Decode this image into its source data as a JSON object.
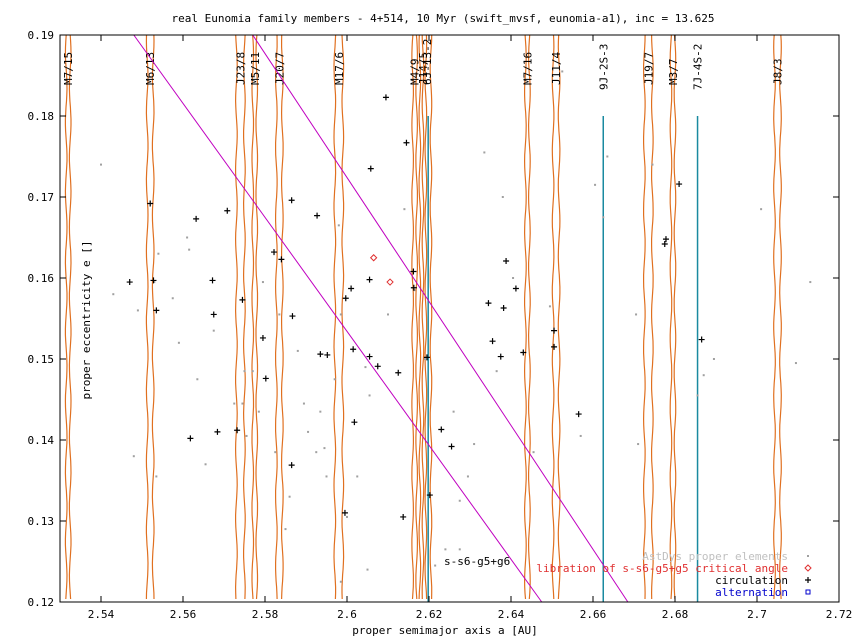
{
  "chart_data": {
    "type": "scatter",
    "title": "real Eunomia family members - 4+514, 10 Myr (swift_mvsf, eunomia-a1), inc = 13.625",
    "xlabel": "proper semimajor axis a [AU]",
    "ylabel": "proper eccentricity e []",
    "xlim": [
      2.53,
      2.72
    ],
    "ylim": [
      0.12,
      0.19
    ],
    "x_ticks": [
      "2.54",
      "2.56",
      "2.58",
      "2.6",
      "2.62",
      "2.64",
      "2.66",
      "2.68",
      "2.7",
      "2.72"
    ],
    "y_ticks": [
      "0.12",
      "0.13",
      "0.14",
      "0.15",
      "0.16",
      "0.17",
      "0.18",
      "0.19"
    ],
    "grid": false,
    "legend_position": "bottom-right",
    "colors": {
      "resonance_lines": "#e07020",
      "three_body_lines": "#1a8aa0",
      "secular_line": "#c000c0",
      "astdys": "#a0a0a0",
      "libration": "#e03030",
      "circulation": "#000000",
      "alternation": "#0000cc"
    },
    "legend": [
      {
        "label": "AstDys proper elements",
        "marker": "dot",
        "color": "#a0a0a0"
      },
      {
        "label": "libration of s-s6-g5+g5 critical angle",
        "marker": "diamond",
        "color": "#e03030"
      },
      {
        "label": "circulation",
        "marker": "plus",
        "color": "#000000"
      },
      {
        "label": "alternation",
        "marker": "square",
        "color": "#0000cc"
      }
    ],
    "annotation": "s-s6-g5+g6",
    "resonances": [
      {
        "label": "M7/15",
        "a": 2.532
      },
      {
        "label": "M6/13",
        "a": 2.552
      },
      {
        "label": "J23/8",
        "a": 2.574
      },
      {
        "label": "M5/11",
        "a": 2.5775
      },
      {
        "label": "J20/7",
        "a": 2.5835
      },
      {
        "label": "M17/6",
        "a": 2.598
      },
      {
        "label": "M4/9",
        "a": 2.6165
      },
      {
        "label": "J14/5",
        "a": 2.6185
      },
      {
        "label": "6J-13-2",
        "a": 2.6195
      },
      {
        "label": "M7/16",
        "a": 2.644
      },
      {
        "label": "J11/4",
        "a": 2.651
      },
      {
        "label": "J19/7",
        "a": 2.6735
      },
      {
        "label": "M3/7",
        "a": 2.6795
      },
      {
        "label": "J8/3",
        "a": 2.705
      }
    ],
    "three_body": [
      {
        "label": "9J-2S-3",
        "a": 2.6625
      },
      {
        "label": "7J-4S-2",
        "a": 2.6855
      }
    ],
    "secular_lines": [
      {
        "points": [
          [
            2.548,
            0.19
          ],
          [
            2.6475,
            0.12
          ]
        ]
      },
      {
        "points": [
          [
            2.577,
            0.19
          ],
          [
            2.6685,
            0.12
          ]
        ]
      }
    ],
    "series": [
      {
        "name": "AstDys proper elements",
        "points": [
          [
            2.54,
            0.174
          ],
          [
            2.543,
            0.158
          ],
          [
            2.548,
            0.138
          ],
          [
            2.549,
            0.156
          ],
          [
            2.553,
            0.1595
          ],
          [
            2.554,
            0.163
          ],
          [
            2.5535,
            0.1355
          ],
          [
            2.5575,
            0.1575
          ],
          [
            2.559,
            0.152
          ],
          [
            2.561,
            0.165
          ],
          [
            2.5615,
            0.1635
          ],
          [
            2.5635,
            0.1475
          ],
          [
            2.5655,
            0.137
          ],
          [
            2.5675,
            0.1535
          ],
          [
            2.5725,
            0.1445
          ],
          [
            2.5745,
            0.1445
          ],
          [
            2.575,
            0.1485
          ],
          [
            2.5755,
            0.1405
          ],
          [
            2.577,
            0.1485
          ],
          [
            2.5785,
            0.1435
          ],
          [
            2.5795,
            0.1595
          ],
          [
            2.5825,
            0.1385
          ],
          [
            2.5835,
            0.1555
          ],
          [
            2.586,
            0.133
          ],
          [
            2.588,
            0.151
          ],
          [
            2.5895,
            0.1445
          ],
          [
            2.5905,
            0.141
          ],
          [
            2.5925,
            0.1385
          ],
          [
            2.5935,
            0.1435
          ],
          [
            2.5945,
            0.139
          ],
          [
            2.595,
            0.1355
          ],
          [
            2.597,
            0.1475
          ],
          [
            2.598,
            0.1665
          ],
          [
            2.5985,
            0.1555
          ],
          [
            2.6,
            0.1305
          ],
          [
            2.6025,
            0.1355
          ],
          [
            2.6045,
            0.149
          ],
          [
            2.6055,
            0.1455
          ],
          [
            2.61,
            0.1555
          ],
          [
            2.614,
            0.1685
          ],
          [
            2.6165,
            0.1585
          ],
          [
            2.619,
            0.15
          ],
          [
            2.624,
            0.1265
          ],
          [
            2.626,
            0.1435
          ],
          [
            2.6275,
            0.1325
          ],
          [
            2.6295,
            0.1355
          ],
          [
            2.631,
            0.1395
          ],
          [
            2.6335,
            0.1755
          ],
          [
            2.6365,
            0.1485
          ],
          [
            2.638,
            0.17
          ],
          [
            2.6405,
            0.16
          ],
          [
            2.6455,
            0.1385
          ],
          [
            2.6495,
            0.1565
          ],
          [
            2.6525,
            0.1855
          ],
          [
            2.657,
            0.1405
          ],
          [
            2.6605,
            0.1715
          ],
          [
            2.6635,
            0.175
          ],
          [
            2.6705,
            0.1555
          ],
          [
            2.671,
            0.1395
          ],
          [
            2.6745,
            0.174
          ],
          [
            2.6855,
            0.1455
          ],
          [
            2.687,
            0.148
          ],
          [
            2.6895,
            0.15
          ],
          [
            2.701,
            0.1685
          ],
          [
            2.7095,
            0.1495
          ],
          [
            2.713,
            0.1595
          ],
          [
            2.6625,
            0.1675
          ],
          [
            2.5985,
            0.1225
          ],
          [
            2.6215,
            0.1245
          ],
          [
            2.6275,
            0.1265
          ],
          [
            2.605,
            0.124
          ],
          [
            2.585,
            0.129
          ]
        ]
      },
      {
        "name": "libration of s-s6-g5+g5 critical angle",
        "points": [
          [
            2.6065,
            0.1625
          ],
          [
            2.6105,
            0.1595
          ]
        ]
      },
      {
        "name": "circulation",
        "points": [
          [
            2.547,
            0.1595
          ],
          [
            2.552,
            0.1692
          ],
          [
            2.5528,
            0.1597
          ],
          [
            2.5535,
            0.156
          ],
          [
            2.5618,
            0.1402
          ],
          [
            2.5632,
            0.1673
          ],
          [
            2.5672,
            0.1597
          ],
          [
            2.5675,
            0.1555
          ],
          [
            2.5684,
            0.141
          ],
          [
            2.5708,
            0.1683
          ],
          [
            2.5732,
            0.1412
          ],
          [
            2.5745,
            0.1573
          ],
          [
            2.5795,
            0.1526
          ],
          [
            2.5802,
            0.1476
          ],
          [
            2.5822,
            0.1632
          ],
          [
            2.584,
            0.1623
          ],
          [
            2.5865,
            0.1696
          ],
          [
            2.5867,
            0.1553
          ],
          [
            2.5865,
            0.1369
          ],
          [
            2.5927,
            0.1677
          ],
          [
            2.5935,
            0.1506
          ],
          [
            2.5952,
            0.1505
          ],
          [
            2.5997,
            0.1575
          ],
          [
            2.5995,
            0.131
          ],
          [
            2.601,
            0.1587
          ],
          [
            2.6015,
            0.1512
          ],
          [
            2.6018,
            0.1422
          ],
          [
            2.6055,
            0.1598
          ],
          [
            2.6055,
            0.1503
          ],
          [
            2.6058,
            0.1735
          ],
          [
            2.6075,
            0.1491
          ],
          [
            2.6095,
            0.1823
          ],
          [
            2.6125,
            0.1483
          ],
          [
            2.6137,
            0.1305
          ],
          [
            2.6145,
            0.1767
          ],
          [
            2.6162,
            0.1608
          ],
          [
            2.6163,
            0.1588
          ],
          [
            2.6195,
            0.1502
          ],
          [
            2.6202,
            0.1332
          ],
          [
            2.623,
            0.1413
          ],
          [
            2.6255,
            0.1392
          ],
          [
            2.6345,
            0.1569
          ],
          [
            2.6355,
            0.1522
          ],
          [
            2.6375,
            0.1503
          ],
          [
            2.6382,
            0.1563
          ],
          [
            2.6388,
            0.1621
          ],
          [
            2.6412,
            0.1587
          ],
          [
            2.643,
            0.1508
          ],
          [
            2.6565,
            0.1432
          ],
          [
            2.6505,
            0.1515
          ],
          [
            2.6775,
            0.1642
          ],
          [
            2.6778,
            0.1648
          ],
          [
            2.681,
            0.1716
          ],
          [
            2.6865,
            0.1524
          ],
          [
            2.6505,
            0.1535
          ]
        ]
      },
      {
        "name": "alternation",
        "points": []
      }
    ]
  }
}
